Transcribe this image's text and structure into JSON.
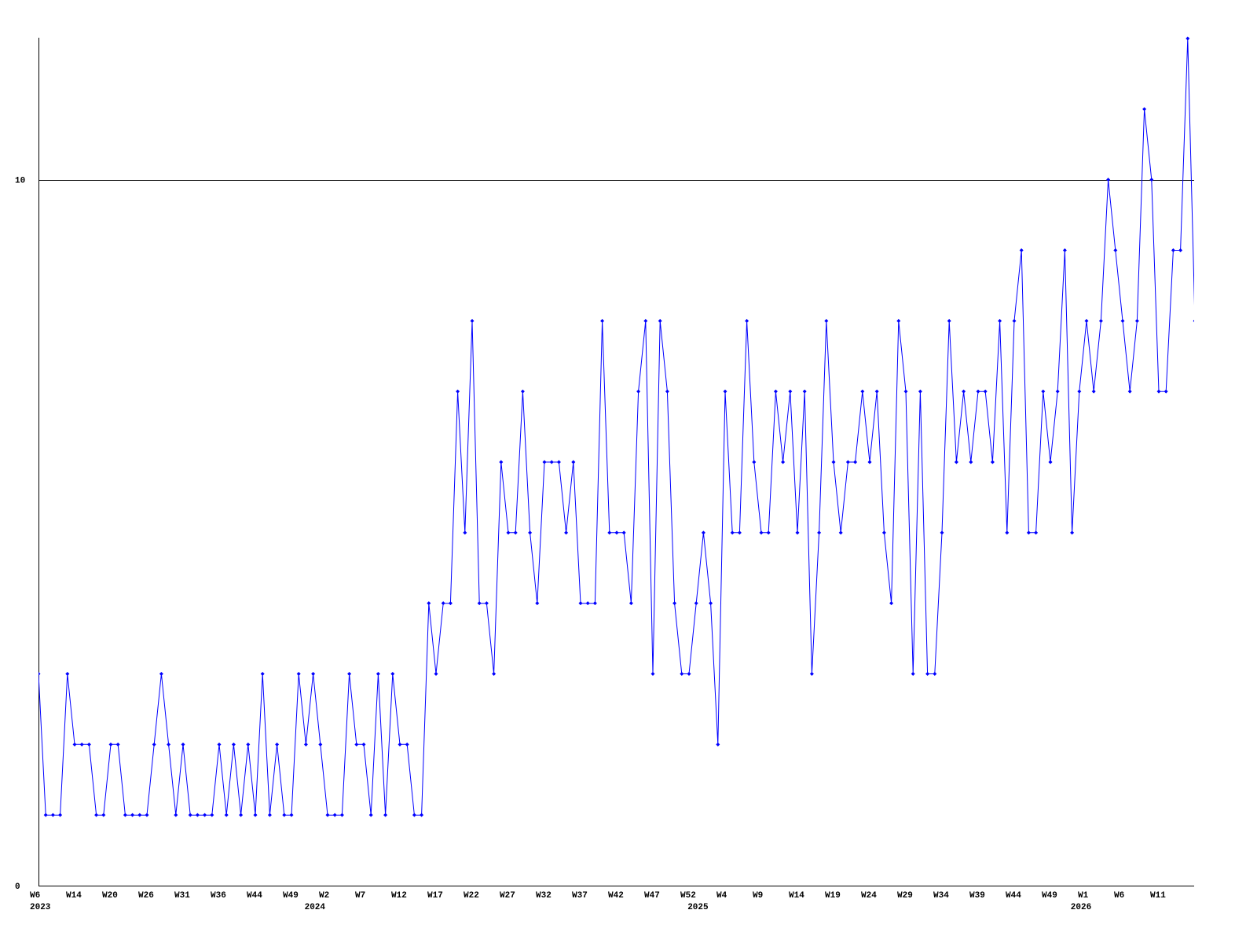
{
  "chart_data": {
    "type": "line",
    "title": "",
    "xlabel": "",
    "ylabel": "",
    "ylim": [
      0,
      12
    ],
    "y_ticks": [
      {
        "value": 0,
        "label": "0"
      },
      {
        "value": 10,
        "label": "10"
      }
    ],
    "gridlines": [
      10
    ],
    "grid": false,
    "line_color": "#0000ff",
    "axis_color": "#000000",
    "x_tick_labels": [
      "W6",
      "W14",
      "W20",
      "W26",
      "W31",
      "W36",
      "W44",
      "W49",
      "W2",
      "W7",
      "W12",
      "W17",
      "W22",
      "W27",
      "W32",
      "W37",
      "W42",
      "W47",
      "W52",
      "W4",
      "W9",
      "W14",
      "W19",
      "W24",
      "W29",
      "W34",
      "W39",
      "W44",
      "W49",
      "W1",
      "W6",
      "W11"
    ],
    "x_tick_every": 5,
    "year_labels": [
      {
        "label": "2023",
        "index": 0
      },
      {
        "label": "2024",
        "index": 38
      },
      {
        "label": "2025",
        "index": 91
      },
      {
        "label": "2026",
        "index": 144
      }
    ],
    "series": [
      {
        "values": [
          3,
          1,
          1,
          1,
          3,
          2,
          2,
          2,
          1,
          1,
          2,
          2,
          1,
          1,
          1,
          1,
          2,
          3,
          2,
          1,
          2,
          1,
          1,
          1,
          1,
          2,
          1,
          2,
          1,
          2,
          1,
          3,
          1,
          2,
          1,
          1,
          3,
          2,
          3,
          2,
          1,
          1,
          1,
          3,
          2,
          2,
          1,
          3,
          1,
          3,
          2,
          2,
          1,
          1,
          4,
          3,
          4,
          4,
          7,
          5,
          8,
          4,
          4,
          3,
          6,
          5,
          5,
          7,
          5,
          4,
          6,
          6,
          6,
          5,
          6,
          4,
          4,
          4,
          8,
          5,
          5,
          5,
          4,
          7,
          8,
          3,
          8,
          7,
          4,
          3,
          3,
          4,
          5,
          4,
          2,
          7,
          5,
          5,
          8,
          6,
          5,
          5,
          7,
          6,
          7,
          5,
          7,
          3,
          5,
          8,
          6,
          5,
          6,
          6,
          7,
          6,
          7,
          5,
          4,
          8,
          7,
          3,
          7,
          3,
          3,
          5,
          8,
          6,
          7,
          6,
          7,
          7,
          6,
          8,
          5,
          8,
          9,
          5,
          5,
          7,
          6,
          7,
          9,
          5,
          7,
          8,
          7,
          8,
          10,
          9,
          8,
          7,
          8,
          11,
          10,
          7,
          7,
          9,
          9,
          12,
          8
        ]
      }
    ]
  }
}
